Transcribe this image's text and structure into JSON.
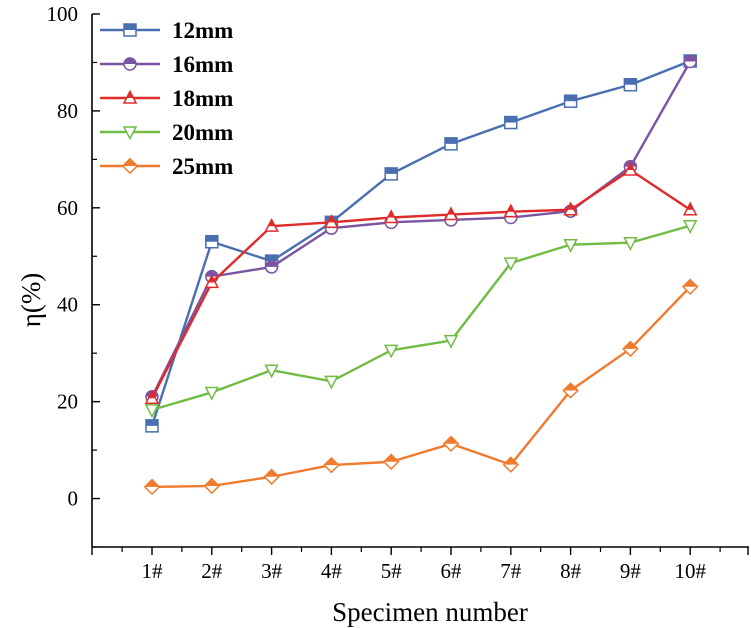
{
  "chart_data": {
    "type": "line",
    "xlabel": "Specimen number",
    "ylabel": "η(%)",
    "categories": [
      "1#",
      "2#",
      "3#",
      "4#",
      "5#",
      "6#",
      "7#",
      "8#",
      "9#",
      "10#"
    ],
    "ylim": [
      -10,
      100
    ],
    "yticks": [
      0,
      20,
      40,
      60,
      80,
      100
    ],
    "grid": false,
    "legend_position": "top-left",
    "series": [
      {
        "name": "12mm",
        "color": "#4a6fb0",
        "marker": "square",
        "values": [
          15.0,
          53.0,
          49.0,
          57.0,
          67.0,
          73.2,
          77.6,
          82.0,
          85.4,
          90.3
        ]
      },
      {
        "name": "16mm",
        "color": "#7b55a3",
        "marker": "circle",
        "values": [
          21.0,
          45.8,
          47.8,
          55.8,
          57.0,
          57.5,
          58.0,
          59.3,
          68.5,
          90.2
        ]
      },
      {
        "name": "18mm",
        "color": "#e02b2b",
        "marker": "triangle-up",
        "values": [
          20.7,
          44.6,
          56.2,
          57.0,
          58.0,
          58.6,
          59.2,
          59.6,
          67.8,
          59.6
        ]
      },
      {
        "name": "20mm",
        "color": "#70bc44",
        "marker": "triangle-down",
        "values": [
          18.3,
          21.9,
          26.5,
          24.2,
          30.6,
          32.6,
          48.6,
          52.4,
          52.8,
          56.3
        ]
      },
      {
        "name": "25mm",
        "color": "#f07a2d",
        "marker": "diamond",
        "values": [
          2.4,
          2.6,
          4.5,
          6.9,
          7.6,
          11.3,
          7.0,
          22.3,
          30.9,
          43.7
        ]
      }
    ]
  }
}
